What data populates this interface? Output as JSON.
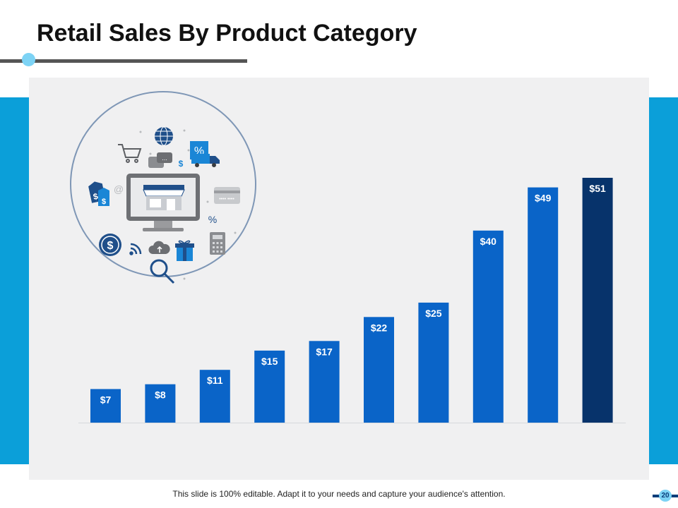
{
  "slide": {
    "title": "Retail Sales By Product Category",
    "footer": "This slide is 100% editable. Adapt it to your needs and capture your audience's attention.",
    "page_number": "20"
  },
  "icons": [
    "store-monitor-icon",
    "globe-icon",
    "shopping-cart-icon",
    "chat-bubbles-icon",
    "discount-tag-icon",
    "delivery-truck-icon",
    "credit-card-icon",
    "price-tags-icon",
    "dollar-coin-icon",
    "wifi-icon",
    "cloud-upload-icon",
    "gift-icon",
    "calculator-icon",
    "magnifier-icon"
  ],
  "icon_glyphs": {
    "dollar": "$",
    "percent": "%",
    "at": "@"
  },
  "colors": {
    "accent": "#0b9fd9",
    "bar": "#0a64c8",
    "bar_highlight": "#07336b",
    "panel": "#f0f0f1",
    "title_dot": "#7dd3f5"
  },
  "chart_data": {
    "type": "bar",
    "title": "",
    "xlabel": "",
    "ylabel": "",
    "categories": [
      "",
      "",
      "",
      "",
      "",
      "",
      "",
      "",
      "",
      ""
    ],
    "values": [
      7,
      8,
      11,
      15,
      17,
      22,
      25,
      40,
      49,
      51
    ],
    "data_labels": [
      "$7",
      "$8",
      "$11",
      "$15",
      "$17",
      "$22",
      "$25",
      "$40",
      "$49",
      "$51"
    ],
    "highlight_index": 9,
    "ylim": [
      0,
      51
    ],
    "grid": false,
    "legend": "none"
  }
}
